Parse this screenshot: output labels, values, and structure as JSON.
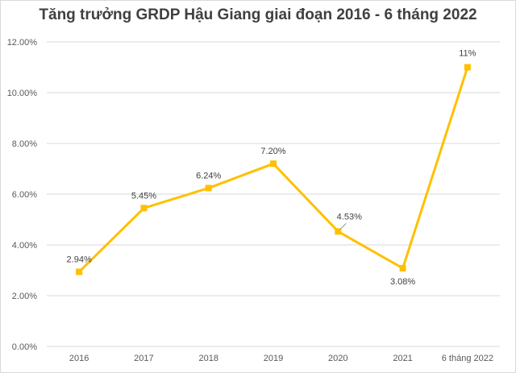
{
  "chart_data": {
    "type": "line",
    "title": "Tăng trưởng GRDP Hậu Giang giai đoạn 2016 - 6 tháng 2022",
    "categories": [
      "2016",
      "2017",
      "2018",
      "2019",
      "2020",
      "2021",
      "6 tháng 2022"
    ],
    "series": [
      {
        "values": [
          2.94,
          5.45,
          6.24,
          7.2,
          4.53,
          3.08,
          11
        ],
        "labels": [
          "2.94%",
          "5.45%",
          "6.24%",
          "7.20%",
          "4.53%",
          "3.08%",
          "11%"
        ],
        "color": "#FFC000"
      }
    ],
    "y_ticks": [
      "0.00%",
      "2.00%",
      "4.00%",
      "6.00%",
      "8.00%",
      "10.00%",
      "12.00%"
    ],
    "ylim": [
      0,
      12
    ],
    "xlabel": "",
    "ylabel": "",
    "grid": true,
    "gridline_color": "#d9d9d9"
  }
}
